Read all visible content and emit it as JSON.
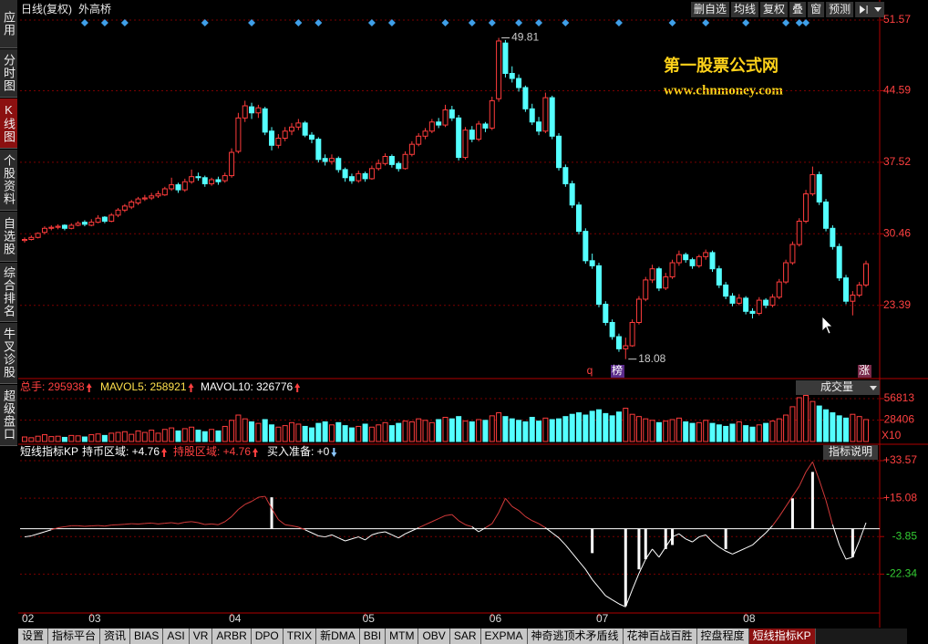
{
  "header": {
    "period": "日线(复权)",
    "stock": "外高桥",
    "buttons": [
      "删自选",
      "均线",
      "复权",
      "叠",
      "窗",
      "预测"
    ]
  },
  "sidebar": [
    "应用",
    "分时图",
    "K线图",
    "个股资料",
    "自选股",
    "综合排名",
    "牛叉诊股",
    "超级盘口"
  ],
  "watermark": {
    "title": "第一股票公式网",
    "url": "www.chnmoney.com"
  },
  "flags": [
    "q",
    "榜",
    "涨"
  ],
  "tabs": [
    "设置",
    "指标平台",
    "资讯",
    "BIAS",
    "ASI",
    "VR",
    "ARBR",
    "DPO",
    "TRIX",
    "新DMA",
    "BBI",
    "MTM",
    "OBV",
    "SAR",
    "EXPMA",
    "神奇逃顶术矛盾线",
    "花神百战百胜",
    "控盘程度",
    "短线指标KP"
  ],
  "chart_data": [
    {
      "type": "candlestick",
      "up_color": "#ff3c3c",
      "down_color": "#54ffff",
      "axis_color": "#ff4040",
      "grid": true,
      "marker_color": "#3f9fe8",
      "ylim": [
        16.34,
        53.1
      ],
      "yticks": [
        51.57,
        44.59,
        37.52,
        30.46,
        23.39
      ],
      "categories": [
        "02",
        null,
        null,
        null,
        null,
        null,
        null,
        null,
        null,
        null,
        "03",
        null,
        null,
        null,
        null,
        null,
        null,
        null,
        null,
        null,
        null,
        null,
        null,
        null,
        null,
        null,
        null,
        null,
        null,
        null,
        null,
        "04",
        null,
        null,
        null,
        null,
        null,
        null,
        null,
        null,
        null,
        null,
        null,
        null,
        null,
        null,
        null,
        null,
        null,
        null,
        null,
        "05",
        null,
        null,
        null,
        null,
        null,
        null,
        null,
        null,
        null,
        null,
        null,
        null,
        null,
        null,
        null,
        null,
        null,
        null,
        "06",
        null,
        null,
        null,
        null,
        null,
        null,
        null,
        null,
        null,
        null,
        null,
        null,
        null,
        null,
        null,
        "07",
        null,
        null,
        null,
        null,
        null,
        null,
        null,
        null,
        null,
        null,
        null,
        null,
        null,
        null,
        null,
        null,
        null,
        null,
        null,
        null,
        null,
        "08",
        null,
        null,
        null,
        null,
        null,
        null,
        null,
        null,
        null,
        null,
        null,
        null,
        null,
        null,
        null,
        null,
        null,
        null
      ],
      "markers": [
        9,
        12,
        15,
        27,
        34,
        41,
        44,
        52,
        55,
        63,
        67,
        70,
        74,
        77,
        81,
        89,
        97,
        102,
        108,
        114,
        116,
        117
      ],
      "ohlc": [
        [
          29.8,
          30.1,
          29.6,
          29.9
        ],
        [
          29.9,
          30.3,
          29.8,
          30.1
        ],
        [
          30.1,
          30.6,
          30.0,
          30.5
        ],
        [
          30.6,
          31.2,
          30.4,
          31.0
        ],
        [
          31.0,
          31.3,
          30.8,
          31.1
        ],
        [
          31.1,
          31.4,
          30.9,
          31.2
        ],
        [
          31.3,
          31.4,
          30.8,
          31.0
        ],
        [
          31.0,
          31.5,
          30.9,
          31.3
        ],
        [
          31.3,
          31.7,
          31.2,
          31.5
        ],
        [
          31.6,
          31.8,
          31.2,
          31.4
        ],
        [
          31.3,
          31.9,
          31.2,
          31.6
        ],
        [
          31.6,
          32.3,
          31.5,
          32.0
        ],
        [
          32.1,
          32.2,
          31.5,
          31.7
        ],
        [
          31.7,
          32.5,
          31.6,
          32.3
        ],
        [
          32.3,
          33.0,
          32.1,
          32.8
        ],
        [
          32.8,
          33.4,
          32.6,
          33.2
        ],
        [
          33.1,
          33.8,
          32.9,
          33.6
        ],
        [
          33.5,
          34.1,
          33.3,
          33.9
        ],
        [
          33.9,
          34.3,
          33.7,
          34.0
        ],
        [
          34.0,
          34.5,
          33.8,
          34.2
        ],
        [
          34.2,
          34.7,
          34.0,
          34.4
        ],
        [
          34.3,
          35.1,
          34.2,
          34.9
        ],
        [
          34.9,
          36.0,
          34.7,
          35.3
        ],
        [
          35.3,
          35.5,
          34.5,
          34.8
        ],
        [
          34.8,
          35.9,
          34.6,
          35.6
        ],
        [
          35.6,
          36.8,
          35.4,
          36.1
        ],
        [
          36.1,
          36.5,
          35.7,
          36.0
        ],
        [
          36.0,
          36.2,
          35.1,
          35.4
        ],
        [
          35.4,
          36.0,
          35.2,
          35.8
        ],
        [
          35.8,
          36.1,
          35.3,
          35.6
        ],
        [
          35.7,
          36.5,
          35.5,
          36.2
        ],
        [
          36.2,
          38.9,
          36.0,
          38.5
        ],
        [
          38.6,
          42.4,
          38.4,
          41.9
        ],
        [
          41.9,
          43.6,
          41.5,
          43.1
        ],
        [
          43.0,
          43.4,
          41.8,
          42.4
        ],
        [
          42.4,
          43.2,
          41.9,
          42.9
        ],
        [
          42.8,
          43.0,
          40.2,
          40.5
        ],
        [
          40.6,
          41.0,
          38.7,
          39.2
        ],
        [
          39.2,
          40.3,
          38.9,
          39.9
        ],
        [
          39.9,
          41.0,
          39.6,
          40.6
        ],
        [
          40.6,
          41.4,
          40.2,
          41.0
        ],
        [
          41.0,
          41.8,
          40.7,
          41.4
        ],
        [
          41.4,
          41.6,
          40.0,
          40.2
        ],
        [
          40.2,
          40.5,
          39.4,
          39.8
        ],
        [
          39.8,
          40.0,
          37.5,
          37.8
        ],
        [
          37.9,
          38.3,
          37.2,
          37.6
        ],
        [
          37.6,
          38.3,
          37.3,
          37.9
        ],
        [
          37.9,
          38.1,
          36.5,
          36.8
        ],
        [
          36.8,
          37.0,
          35.6,
          36.0
        ],
        [
          36.1,
          36.4,
          35.4,
          35.7
        ],
        [
          35.7,
          36.7,
          35.5,
          36.4
        ],
        [
          36.4,
          36.6,
          35.6,
          35.9
        ],
        [
          35.9,
          37.2,
          35.8,
          36.9
        ],
        [
          36.9,
          37.8,
          36.7,
          37.4
        ],
        [
          37.4,
          38.4,
          37.2,
          38.1
        ],
        [
          38.1,
          38.3,
          37.0,
          37.3
        ],
        [
          37.4,
          37.6,
          36.6,
          36.9
        ],
        [
          36.9,
          38.6,
          36.8,
          38.3
        ],
        [
          38.3,
          39.6,
          38.1,
          39.3
        ],
        [
          39.3,
          40.4,
          39.1,
          40.1
        ],
        [
          40.1,
          40.9,
          39.8,
          40.6
        ],
        [
          40.6,
          41.8,
          40.4,
          41.5
        ],
        [
          41.5,
          41.9,
          40.9,
          41.2
        ],
        [
          41.2,
          43.2,
          41.0,
          42.7
        ],
        [
          42.7,
          43.1,
          41.6,
          41.9
        ],
        [
          41.9,
          42.2,
          37.7,
          38.0
        ],
        [
          38.0,
          41.0,
          37.8,
          40.7
        ],
        [
          40.7,
          41.1,
          39.5,
          39.8
        ],
        [
          39.8,
          41.6,
          39.6,
          41.3
        ],
        [
          41.3,
          41.5,
          40.5,
          40.9
        ],
        [
          40.9,
          44.0,
          40.7,
          43.6
        ],
        [
          43.8,
          49.81,
          43.5,
          49.5
        ],
        [
          49.3,
          49.6,
          45.9,
          46.3
        ],
        [
          46.3,
          47.0,
          45.4,
          45.8
        ],
        [
          45.8,
          46.2,
          44.5,
          44.9
        ],
        [
          44.9,
          45.1,
          42.5,
          42.8
        ],
        [
          42.8,
          43.3,
          41.2,
          41.5
        ],
        [
          41.5,
          42.0,
          40.2,
          40.6
        ],
        [
          40.6,
          44.4,
          40.4,
          43.9
        ],
        [
          43.9,
          44.1,
          39.8,
          40.1
        ],
        [
          40.1,
          40.4,
          36.7,
          37.0
        ],
        [
          37.0,
          37.3,
          35.1,
          35.4
        ],
        [
          35.4,
          35.7,
          33.0,
          33.3
        ],
        [
          33.3,
          33.6,
          30.4,
          30.7
        ],
        [
          30.7,
          31.0,
          27.5,
          27.8
        ],
        [
          27.8,
          28.5,
          27.0,
          27.3
        ],
        [
          27.3,
          27.6,
          23.2,
          23.5
        ],
        [
          23.5,
          23.8,
          21.4,
          21.7
        ],
        [
          21.7,
          22.0,
          20.0,
          20.3
        ],
        [
          20.3,
          20.6,
          18.8,
          19.1
        ],
        [
          19.1,
          20.2,
          18.08,
          19.4
        ],
        [
          19.4,
          22.0,
          19.3,
          21.7
        ],
        [
          21.7,
          24.3,
          21.5,
          24.0
        ],
        [
          24.0,
          26.2,
          23.8,
          25.9
        ],
        [
          25.9,
          27.4,
          25.6,
          27.0
        ],
        [
          27.0,
          27.2,
          24.8,
          25.1
        ],
        [
          25.1,
          26.6,
          24.9,
          26.2
        ],
        [
          26.2,
          27.9,
          26.0,
          27.6
        ],
        [
          27.6,
          28.8,
          27.3,
          28.4
        ],
        [
          28.4,
          28.6,
          27.6,
          27.9
        ],
        [
          27.9,
          28.1,
          27.0,
          27.3
        ],
        [
          27.3,
          28.4,
          27.1,
          28.2
        ],
        [
          28.2,
          28.9,
          27.9,
          28.6
        ],
        [
          28.6,
          28.8,
          26.7,
          27.0
        ],
        [
          27.0,
          27.3,
          25.1,
          25.4
        ],
        [
          25.4,
          25.7,
          24.0,
          24.3
        ],
        [
          24.3,
          24.6,
          23.3,
          23.6
        ],
        [
          23.6,
          24.5,
          23.4,
          24.1
        ],
        [
          24.1,
          24.3,
          22.5,
          22.8
        ],
        [
          22.8,
          23.1,
          22.1,
          22.6
        ],
        [
          22.6,
          24.2,
          22.4,
          23.9
        ],
        [
          23.9,
          24.1,
          23.1,
          23.4
        ],
        [
          23.4,
          24.5,
          23.2,
          24.2
        ],
        [
          24.2,
          26.0,
          24.0,
          25.7
        ],
        [
          25.7,
          27.9,
          25.5,
          27.6
        ],
        [
          27.6,
          29.7,
          27.4,
          29.4
        ],
        [
          29.4,
          32.0,
          29.2,
          31.7
        ],
        [
          31.7,
          34.8,
          31.5,
          34.4
        ],
        [
          34.4,
          37.1,
          34.2,
          36.3
        ],
        [
          36.3,
          36.6,
          33.3,
          33.6
        ],
        [
          33.6,
          33.9,
          30.7,
          31.0
        ],
        [
          31.0,
          31.3,
          28.9,
          29.2
        ],
        [
          29.2,
          29.5,
          25.8,
          26.1
        ],
        [
          26.1,
          26.4,
          23.5,
          23.8
        ],
        [
          23.8,
          24.8,
          22.4,
          24.4
        ],
        [
          24.4,
          25.7,
          24.2,
          25.4
        ],
        [
          25.4,
          27.8,
          25.2,
          27.5
        ]
      ]
    },
    {
      "type": "bar",
      "title": "成交量",
      "multiplier": "X10",
      "legend": [
        "总手: 295938",
        "MAVOL5: 258921",
        "MAVOL10: 326776"
      ],
      "legend_colors": [
        "#ff4040",
        "#ffe14d",
        "#ffffff"
      ],
      "ylim": [
        0,
        62800
      ],
      "yticks": [
        56813,
        28406
      ],
      "values": [
        6000,
        5000,
        7000,
        9000,
        6500,
        7000,
        5500,
        8000,
        7500,
        6000,
        9000,
        10000,
        8000,
        11000,
        12000,
        13000,
        9500,
        14000,
        12000,
        15000,
        11000,
        16000,
        18000,
        14000,
        17000,
        19000,
        15000,
        13000,
        16000,
        14000,
        20000,
        28000,
        35000,
        30000,
        26000,
        24000,
        29000,
        22000,
        19000,
        21000,
        25000,
        23000,
        20000,
        18000,
        24000,
        26000,
        22000,
        25000,
        21000,
        18000,
        20000,
        23000,
        19000,
        22000,
        25000,
        21000,
        24000,
        27000,
        26000,
        30000,
        28000,
        25000,
        29000,
        32000,
        30000,
        33000,
        27000,
        26000,
        29000,
        28000,
        34000,
        38000,
        33000,
        30000,
        28000,
        26000,
        32000,
        27000,
        31000,
        29000,
        30000,
        33000,
        36000,
        38000,
        35000,
        40000,
        42000,
        37000,
        34000,
        39000,
        44000,
        36000,
        33000,
        30000,
        28000,
        25000,
        27000,
        29000,
        31000,
        26000,
        24000,
        25000,
        28000,
        24000,
        22000,
        20000,
        23000,
        26000,
        21000,
        19000,
        22000,
        24000,
        27000,
        30000,
        35000,
        46000,
        58000,
        61000,
        53000,
        47000,
        42000,
        38000,
        34000,
        31000,
        36000,
        33000,
        29000
      ]
    },
    {
      "type": "line",
      "title": "短线指标KP",
      "button": "指标说明",
      "legend": [
        "持币区域: +4.76",
        "持股区域: +4.76",
        "买入准备: +0"
      ],
      "legend_colors": [
        "#ffffff",
        "#ff4040",
        "#ffffff"
      ],
      "color_above": "#d23a3a",
      "color_below": "#ffffff",
      "bar_color": "#ffffff",
      "pos_tick_color": "#ff4040",
      "neg_tick_color": "#33cc33",
      "ylim": [
        -41.5,
        40.3
      ],
      "yticks": [
        {
          "value": 33.57,
          "label": "+33.57"
        },
        {
          "value": 15.08,
          "label": "+15.08"
        },
        {
          "value": -3.85,
          "label": "-3.85"
        },
        {
          "value": -22.34,
          "label": "-22.34"
        }
      ],
      "values": [
        -4,
        -3.5,
        -2.5,
        -1.5,
        -0.5,
        0.5,
        1,
        1.5,
        1.5,
        1.2,
        1.4,
        1.6,
        1.3,
        1.8,
        2.0,
        2.2,
        2.5,
        2.3,
        2.6,
        2.8,
        2.4,
        2.7,
        3.0,
        2.5,
        3.2,
        3.5,
        3.0,
        2.1,
        2.4,
        2.0,
        3.5,
        6.0,
        9.5,
        12.0,
        13.5,
        15.5,
        16.0,
        10.0,
        4.5,
        2.0,
        1.5,
        0.8,
        -0.5,
        -2.0,
        -3.5,
        -4.0,
        -3.0,
        -4.5,
        -6.0,
        -5.0,
        -4.0,
        -5.5,
        -3.0,
        -2.0,
        -1.5,
        -3.0,
        -4.5,
        -2.5,
        -1.0,
        0.5,
        2.0,
        3.5,
        5.0,
        6.5,
        7.0,
        4.0,
        2.0,
        1.0,
        -1.5,
        0.5,
        2.5,
        8.0,
        15.0,
        11.0,
        9.0,
        6.0,
        4.0,
        2.5,
        0.5,
        -2.0,
        -4.5,
        -8.0,
        -12.0,
        -16.0,
        -20.0,
        -25.0,
        -29.0,
        -33.0,
        -35.0,
        -37.0,
        -38.5,
        -30.0,
        -22.0,
        -15.0,
        -10.0,
        -14.0,
        -9.0,
        -4.0,
        -2.5,
        -5.0,
        -6.5,
        -4.0,
        -3.0,
        -6.5,
        -9.0,
        -11.0,
        -12.5,
        -11.0,
        -9.5,
        -8.0,
        -5.0,
        -2.0,
        1.5,
        6.0,
        11.0,
        16.0,
        21.0,
        28.0,
        33.0,
        24.0,
        14.0,
        2.0,
        -8.0,
        -15.0,
        -14.0,
        -6.0,
        3.0
      ],
      "bars": {
        "index": [
          37,
          85,
          90,
          92,
          93,
          96,
          97,
          105,
          115,
          118,
          124
        ],
        "values": [
          15.5,
          -12,
          -38,
          -20,
          -15,
          -10,
          -8,
          -10,
          15,
          28,
          -14
        ]
      }
    }
  ]
}
